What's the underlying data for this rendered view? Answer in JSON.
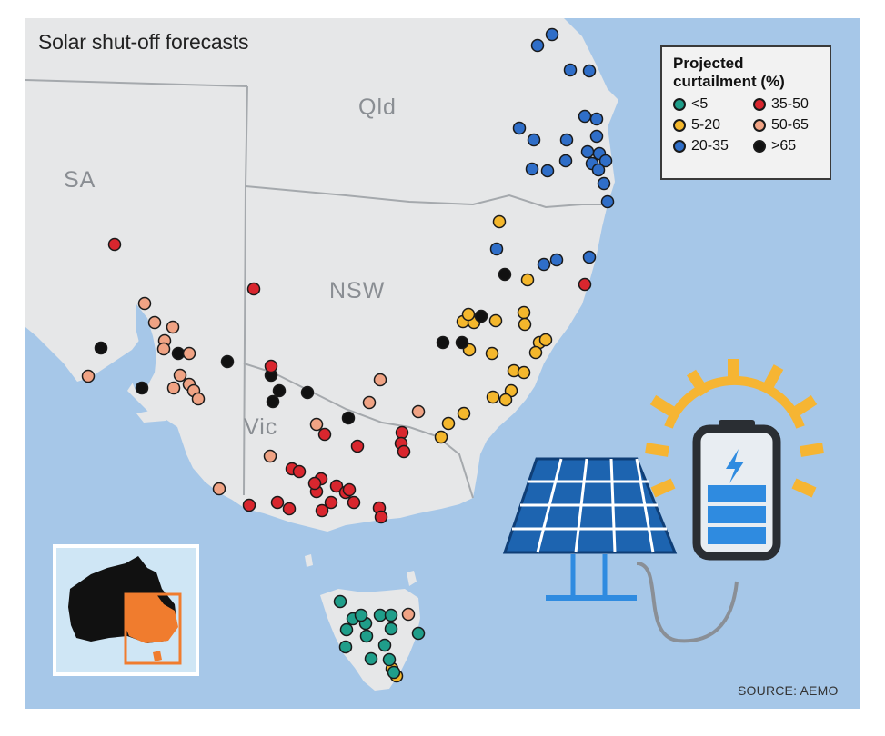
{
  "title": "Solar shut-off forecasts",
  "state_labels": {
    "qld": "Qld",
    "sa": "SA",
    "nsw": "NSW",
    "vic": "Vic"
  },
  "legend": {
    "title_line1": "Projected",
    "title_line2": "curtailment (%)",
    "items": [
      {
        "label": "<5",
        "color": "#1f9e8a"
      },
      {
        "label": "35-50",
        "color": "#d9262e"
      },
      {
        "label": "5-20",
        "color": "#f4b72c"
      },
      {
        "label": "50-65",
        "color": "#f0a384"
      },
      {
        "label": "20-35",
        "color": "#2f6ec8"
      },
      {
        "label": ">65",
        "color": "#111111"
      }
    ]
  },
  "source": "SOURCE: AEMO",
  "colors": {
    "ocean": "#a6c7e8",
    "land": "#e6e7e8",
    "border": "#a5a9ad",
    "inset_bg": "#cfe6f5",
    "inset_highlight": "#f07c2e",
    "panel_blue": "#1d64b0",
    "battery_accent": "#2f8be0",
    "sun": "#f6b533"
  },
  "icons": [
    "solar-panel-icon",
    "battery-icon",
    "sun-rays-icon",
    "lightning-bolt-icon",
    "australia-inset-map"
  ]
}
